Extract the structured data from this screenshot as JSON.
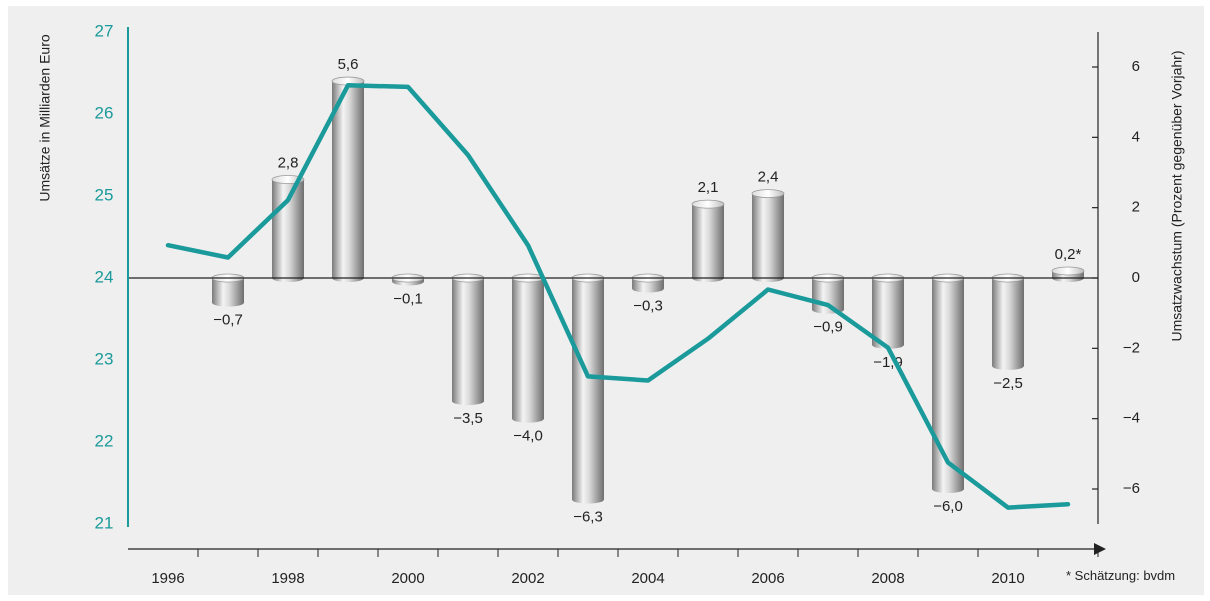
{
  "chart_data": {
    "type": "bar+line",
    "title": "",
    "ylabel_left": "Umsätze in Milliarden Euro",
    "ylabel_right": "Umsatzwachstum (Prozent gegenüber Vorjahr)",
    "footnote": "* Schätzung: bvdm",
    "ylim_left": [
      21,
      27
    ],
    "yticks_left": [
      "21",
      "22",
      "23",
      "24",
      "25",
      "26",
      "27"
    ],
    "ylim_right": [
      -7,
      7
    ],
    "yticks_right": [
      "−6",
      "−4",
      "−2",
      "0",
      "2",
      "4",
      "6"
    ],
    "x_tick_labels": [
      "1996",
      "1998",
      "2000",
      "2002",
      "2004",
      "2006",
      "2008",
      "2010"
    ],
    "years": [
      1996,
      1997,
      1998,
      1999,
      2000,
      2001,
      2002,
      2003,
      2004,
      2005,
      2006,
      2007,
      2008,
      2009,
      2010,
      2011
    ],
    "series": [
      {
        "name": "Umsatzwachstum",
        "type": "bar",
        "axis": "right",
        "x": [
          1997,
          1998,
          1999,
          2000,
          2001,
          2002,
          2003,
          2004,
          2005,
          2006,
          2007,
          2008,
          2009,
          2010,
          2011
        ],
        "values": [
          -0.7,
          2.8,
          5.6,
          -0.1,
          -3.5,
          -4.0,
          -6.3,
          -0.3,
          2.1,
          2.4,
          -0.9,
          -1.9,
          -6.0,
          -2.5,
          0.2
        ],
        "labels": [
          "−0,7",
          "2,8",
          "5,6",
          "−0,1",
          "−3,5",
          "−4,0",
          "−6,3",
          "−0,3",
          "2,1",
          "2,4",
          "−0,9",
          "−1,9",
          "−6,0",
          "−2,5",
          "0,2*"
        ]
      },
      {
        "name": "Umsätze",
        "type": "line",
        "axis": "left",
        "x": [
          1996,
          1997,
          1998,
          1999,
          2000,
          2001,
          2002,
          2003,
          2004,
          2005,
          2006,
          2007,
          2008,
          2009,
          2010,
          2011
        ],
        "values": [
          24.4,
          24.25,
          24.95,
          26.35,
          26.33,
          25.5,
          24.4,
          22.8,
          22.75,
          23.26,
          23.86,
          23.67,
          23.15,
          21.75,
          21.2,
          21.24
        ]
      }
    ],
    "colors": {
      "line": "#1a9a9a",
      "left_axis": "#1a9a9a",
      "bar_dark": "#7a7a7a",
      "bar_light": "#f4f4f4",
      "background": "#efefef"
    }
  }
}
